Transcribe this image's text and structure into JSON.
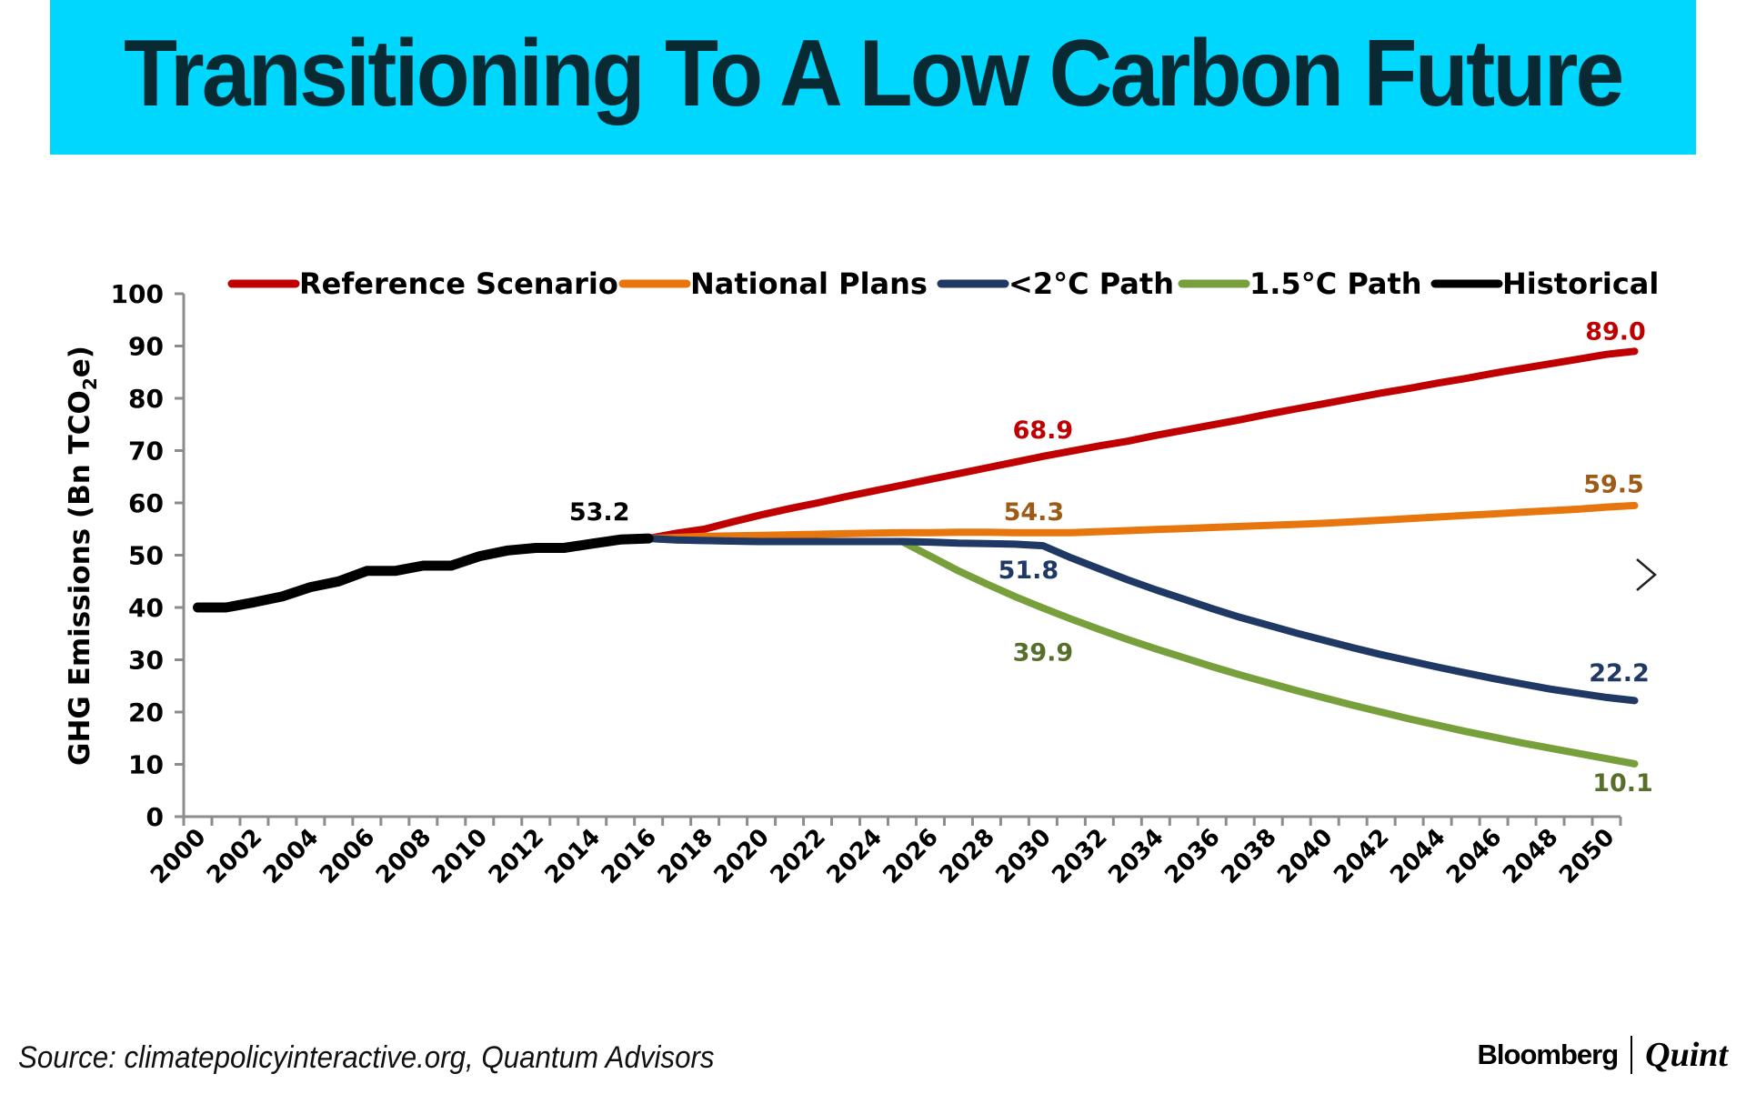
{
  "banner": {
    "title": "Transitioning To A Low Carbon Future",
    "background": "#00d7ff",
    "text_color": "#0a2a33"
  },
  "source": "Source: climatepolicyinteractive.org, Quantum Advisors",
  "logo": {
    "brand": "Bloomberg",
    "sub": "Quint"
  },
  "navigation": {
    "next_icon": "chevron-right-icon"
  },
  "chart_data": {
    "type": "line",
    "title": "",
    "xlabel": "",
    "ylabel": "GHG Emissions (Bn TCO2e)",
    "ylabel_parts": {
      "pre": "GHG Emissions (Bn TCO",
      "sub": "2",
      "post": "e)"
    },
    "ylim": [
      0,
      100
    ],
    "yticks": [
      0,
      10,
      20,
      30,
      40,
      50,
      60,
      70,
      80,
      90,
      100
    ],
    "x": [
      2000,
      2001,
      2002,
      2003,
      2004,
      2005,
      2006,
      2007,
      2008,
      2009,
      2010,
      2011,
      2012,
      2013,
      2014,
      2015,
      2016,
      2017,
      2018,
      2019,
      2020,
      2021,
      2022,
      2023,
      2024,
      2025,
      2026,
      2027,
      2028,
      2029,
      2030,
      2031,
      2032,
      2033,
      2034,
      2035,
      2036,
      2037,
      2038,
      2039,
      2040,
      2041,
      2042,
      2043,
      2044,
      2045,
      2046,
      2047,
      2048,
      2049,
      2050
    ],
    "xtick_labels": [
      "2000",
      "2002",
      "2004",
      "2006",
      "2008",
      "2010",
      "2012",
      "2014",
      "2016",
      "2018",
      "2020",
      "2022",
      "2024",
      "2026",
      "2028",
      "2030",
      "2032",
      "2034",
      "2036",
      "2038",
      "2040",
      "2042",
      "2044",
      "2046",
      "2048",
      "2050"
    ],
    "grid": false,
    "legend_position": "top",
    "series": [
      {
        "name": "Reference Scenario",
        "color": "#c00000",
        "start_year": 2016,
        "values": [
          53.2,
          54.2,
          55.0,
          56.4,
          57.7,
          58.9,
          60.0,
          61.2,
          62.3,
          63.4,
          64.5,
          65.6,
          66.7,
          67.8,
          68.9,
          69.9,
          70.9,
          71.8,
          72.9,
          73.9,
          74.9,
          75.9,
          77.0,
          78.0,
          79.0,
          80.0,
          81.0,
          81.9,
          82.9,
          83.8,
          84.8,
          85.7,
          86.6,
          87.5,
          88.4,
          89.0
        ],
        "labels": [
          {
            "year": 2030,
            "text": "68.9"
          },
          {
            "year": 2050,
            "text": "89.0"
          }
        ]
      },
      {
        "name": "National Plans",
        "color": "#e8760e",
        "label_color": "#9c5b17",
        "start_year": 2016,
        "values": [
          53.2,
          53.4,
          53.6,
          53.7,
          53.8,
          53.9,
          54.0,
          54.1,
          54.2,
          54.3,
          54.3,
          54.4,
          54.4,
          54.3,
          54.3,
          54.3,
          54.5,
          54.7,
          54.9,
          55.1,
          55.3,
          55.5,
          55.7,
          55.9,
          56.1,
          56.4,
          56.7,
          57.0,
          57.3,
          57.6,
          57.9,
          58.2,
          58.5,
          58.8,
          59.2,
          59.5
        ],
        "labels": [
          {
            "year": 2030,
            "text": "54.3"
          },
          {
            "year": 2050,
            "text": "59.5"
          }
        ]
      },
      {
        "name": "<2°C Path",
        "color": "#1f3864",
        "start_year": 2016,
        "values": [
          53.2,
          52.9,
          52.8,
          52.7,
          52.6,
          52.6,
          52.6,
          52.6,
          52.6,
          52.6,
          52.5,
          52.3,
          52.2,
          52.1,
          51.8,
          49.5,
          47.4,
          45.3,
          43.4,
          41.6,
          39.8,
          38.1,
          36.6,
          35.1,
          33.7,
          32.3,
          31.0,
          29.8,
          28.6,
          27.5,
          26.4,
          25.4,
          24.4,
          23.6,
          22.8,
          22.2
        ],
        "labels": [
          {
            "year": 2030,
            "text": "51.8"
          },
          {
            "year": 2050,
            "text": "22.2"
          }
        ]
      },
      {
        "name": "1.5°C Path",
        "color": "#77a03c",
        "label_color": "#56702c",
        "start_year": 2016,
        "values": [
          53.2,
          52.9,
          52.8,
          52.7,
          52.6,
          52.6,
          52.6,
          52.6,
          52.6,
          52.6,
          49.8,
          47.0,
          44.5,
          42.1,
          39.9,
          37.8,
          35.8,
          33.9,
          32.1,
          30.4,
          28.7,
          27.1,
          25.6,
          24.1,
          22.7,
          21.3,
          20.0,
          18.7,
          17.5,
          16.3,
          15.2,
          14.1,
          13.1,
          12.1,
          11.1,
          10.1
        ],
        "labels": [
          {
            "year": 2030,
            "text": "39.9"
          },
          {
            "year": 2050,
            "text": "10.1"
          }
        ]
      },
      {
        "name": "Historical",
        "color": "#000000",
        "start_year": 2000,
        "values": [
          40.0,
          40.0,
          41.0,
          42.1,
          43.9,
          45.0,
          47.0,
          47.0,
          48.0,
          48.0,
          49.8,
          50.9,
          51.4,
          51.4,
          52.2,
          53.0,
          53.2
        ],
        "labels": [
          {
            "year": 2016,
            "text": "53.2"
          }
        ]
      }
    ]
  }
}
